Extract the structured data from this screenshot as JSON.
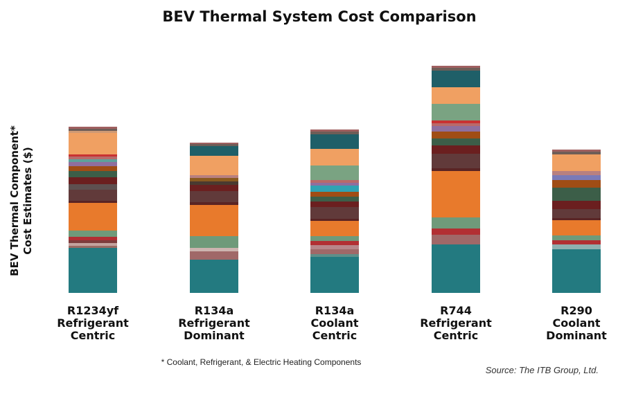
{
  "chart_data": {
    "type": "bar",
    "stacked": true,
    "title": "BEV Thermal System Cost Comparison",
    "ylabel_lines": [
      "BEV Thermal Component*",
      "Cost Estimates ($)"
    ],
    "footnote": "* Coolant, Refrigerant, & Electric Heating Components",
    "source": "Source: The ITB Group, Ltd.",
    "grid": false,
    "legend": "none",
    "ylim": [
      0,
      350
    ],
    "categories": [
      {
        "lines": [
          "R1234yf",
          "Refrigerant",
          "Centric"
        ]
      },
      {
        "lines": [
          "R134a",
          "Refrigerant",
          "Dominant"
        ]
      },
      {
        "lines": [
          "R134a",
          "Coolant",
          "Centric"
        ]
      },
      {
        "lines": [
          "R744",
          "Refrigerant",
          "Centric"
        ]
      },
      {
        "lines": [
          "R290",
          "Coolant",
          "Dominant"
        ]
      }
    ],
    "stacks": [
      [
        {
          "value": 65,
          "color": "#237a80"
        },
        {
          "value": 3,
          "color": "#9a6b64"
        },
        {
          "value": 4,
          "color": "#c4a29e"
        },
        {
          "value": 4,
          "color": "#7d3c3c"
        },
        {
          "value": 5,
          "color": "#b22f33"
        },
        {
          "value": 9,
          "color": "#6f9a7a"
        },
        {
          "value": 40,
          "color": "#e87a2c"
        },
        {
          "value": 3,
          "color": "#5a2424"
        },
        {
          "value": 16,
          "color": "#613a3a"
        },
        {
          "value": 8,
          "color": "#5e5050"
        },
        {
          "value": 10,
          "color": "#6b1f1f"
        },
        {
          "value": 9,
          "color": "#3c5e48"
        },
        {
          "value": 7,
          "color": "#a04d15"
        },
        {
          "value": 6,
          "color": "#8f6f9e"
        },
        {
          "value": 4,
          "color": "#5ea19a"
        },
        {
          "value": 4,
          "color": "#b86a6a"
        },
        {
          "value": 3,
          "color": "#c83232"
        },
        {
          "value": 31,
          "color": "#f0a062"
        },
        {
          "value": 3,
          "color": "#cf9a74"
        },
        {
          "value": 3,
          "color": "#6e5d57"
        },
        {
          "value": 3,
          "color": "#a06060"
        }
      ],
      [
        {
          "value": 48,
          "color": "#237a80"
        },
        {
          "value": 12,
          "color": "#a06868"
        },
        {
          "value": 5,
          "color": "#cdb4b0"
        },
        {
          "value": 17,
          "color": "#6f9a7a"
        },
        {
          "value": 45,
          "color": "#e87a2c"
        },
        {
          "value": 4,
          "color": "#5a2424"
        },
        {
          "value": 16,
          "color": "#613a3a"
        },
        {
          "value": 9,
          "color": "#6b1f1f"
        },
        {
          "value": 5,
          "color": "#4a3a30"
        },
        {
          "value": 5,
          "color": "#8a5a1f"
        },
        {
          "value": 4,
          "color": "#b88080"
        },
        {
          "value": 28,
          "color": "#f0a062"
        },
        {
          "value": 14,
          "color": "#1f5f68"
        },
        {
          "value": 3,
          "color": "#6e5d57"
        },
        {
          "value": 2,
          "color": "#a06060"
        }
      ],
      [
        {
          "value": 52,
          "color": "#237a80"
        },
        {
          "value": 4,
          "color": "#5e8f8a"
        },
        {
          "value": 7,
          "color": "#a06868"
        },
        {
          "value": 6,
          "color": "#b8868a"
        },
        {
          "value": 6,
          "color": "#b22f33"
        },
        {
          "value": 7,
          "color": "#6f9a7a"
        },
        {
          "value": 22,
          "color": "#e87a2c"
        },
        {
          "value": 3,
          "color": "#5a2424"
        },
        {
          "value": 17,
          "color": "#613a3a"
        },
        {
          "value": 8,
          "color": "#6b1f1f"
        },
        {
          "value": 7,
          "color": "#3c5e48"
        },
        {
          "value": 7,
          "color": "#a04d15"
        },
        {
          "value": 9,
          "color": "#2fa3b3"
        },
        {
          "value": 4,
          "color": "#8f6f9e"
        },
        {
          "value": 4,
          "color": "#b86a6a"
        },
        {
          "value": 21,
          "color": "#7aa382"
        },
        {
          "value": 24,
          "color": "#f0a062"
        },
        {
          "value": 21,
          "color": "#1f5f68"
        },
        {
          "value": 4,
          "color": "#6e5d57"
        },
        {
          "value": 3,
          "color": "#a06060"
        }
      ],
      [
        {
          "value": 70,
          "color": "#237a80"
        },
        {
          "value": 14,
          "color": "#a06868"
        },
        {
          "value": 9,
          "color": "#b22f33"
        },
        {
          "value": 16,
          "color": "#6f9a7a"
        },
        {
          "value": 67,
          "color": "#e87a2c"
        },
        {
          "value": 4,
          "color": "#5a2424"
        },
        {
          "value": 21,
          "color": "#613a3a"
        },
        {
          "value": 12,
          "color": "#6b1f1f"
        },
        {
          "value": 10,
          "color": "#3c5e48"
        },
        {
          "value": 10,
          "color": "#a04d15"
        },
        {
          "value": 8,
          "color": "#8f6f9e"
        },
        {
          "value": 4,
          "color": "#b86a6a"
        },
        {
          "value": 4,
          "color": "#c83232"
        },
        {
          "value": 24,
          "color": "#7aa382"
        },
        {
          "value": 24,
          "color": "#f0a062"
        },
        {
          "value": 24,
          "color": "#1f5f68"
        },
        {
          "value": 4,
          "color": "#6e5d57"
        },
        {
          "value": 3,
          "color": "#a06060"
        }
      ],
      [
        {
          "value": 63,
          "color": "#237a80"
        },
        {
          "value": 7,
          "color": "#8fb0b0"
        },
        {
          "value": 6,
          "color": "#b22f33"
        },
        {
          "value": 7,
          "color": "#6f9a7a"
        },
        {
          "value": 22,
          "color": "#e87a2c"
        },
        {
          "value": 3,
          "color": "#5a2424"
        },
        {
          "value": 13,
          "color": "#613a3a"
        },
        {
          "value": 12,
          "color": "#6b1f1f"
        },
        {
          "value": 19,
          "color": "#3c5e48"
        },
        {
          "value": 11,
          "color": "#a04d15"
        },
        {
          "value": 7,
          "color": "#7a7ab8"
        },
        {
          "value": 6,
          "color": "#b88080"
        },
        {
          "value": 24,
          "color": "#f0a062"
        },
        {
          "value": 4,
          "color": "#6e5d57"
        },
        {
          "value": 3,
          "color": "#a06060"
        }
      ]
    ]
  }
}
